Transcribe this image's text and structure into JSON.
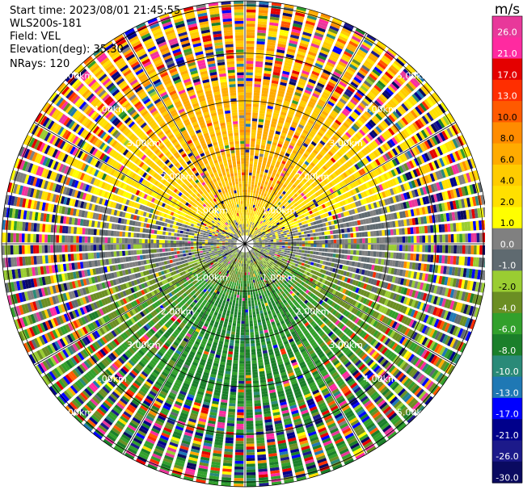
{
  "header": {
    "start_time": "Start time: 2023/08/01 21:45:55",
    "instrument": "WLS200s-181",
    "field": "Field: VEL",
    "elevation": "Elevation(deg): 35.30",
    "nrays": "NRays: 120"
  },
  "chart_data": {
    "type": "heatmap",
    "subtype": "polar PPI scan",
    "title": "",
    "field": "VEL",
    "units": "m/s",
    "elevation_deg": 35.3,
    "n_rays": 120,
    "max_range_km": 5.1,
    "range_rings_km": [
      1.0,
      2.0,
      3.0,
      4.0,
      5.0
    ],
    "range_labels": [
      "1.00km",
      "2.00km",
      "3.00km",
      "4.00km",
      "5.00km"
    ],
    "colorbar": {
      "label": "m/s",
      "ticks": [
        "26.0",
        "21.0",
        "17.0",
        "13.0",
        "10.0",
        "8.0",
        "6.0",
        "4.0",
        "2.0",
        "1.0",
        "0.0",
        "-1.0",
        "-2.0",
        "-4.0",
        "-6.0",
        "-8.0",
        "-10.0",
        "-13.0",
        "-17.0",
        "-21.0",
        "-26.0",
        "-30.0"
      ],
      "bounds": [
        30,
        26,
        21,
        17,
        13,
        10,
        8,
        6,
        4,
        2,
        1,
        0,
        -1,
        -2,
        -4,
        -6,
        -8,
        -10,
        -13,
        -17,
        -21,
        -26,
        -30
      ],
      "colors": [
        "#e8389a",
        "#ff2aa0",
        "#e40000",
        "#ff2e00",
        "#ff5a00",
        "#ff8c00",
        "#ffab00",
        "#ffcc00",
        "#ffe000",
        "#ffff00",
        "#808080",
        "#5f6a70",
        "#9acd32",
        "#6b8e23",
        "#32a02c",
        "#1b7f2a",
        "#2a8a78",
        "#1f78b4",
        "#0000ff",
        "#00008b",
        "#1c1a8a",
        "#0a0a60"
      ]
    },
    "pattern": {
      "receding_sector": "north, 0.5-3.0 km: velocities 2 to 8 m/s (yellow/orange)",
      "approaching_sector": "south, 0.5-3.0 km: velocities -2 to -8 m/s (green)",
      "far_range": "beyond ~3.5 km: noisy, values span the full -30 to 30 m/s range"
    }
  }
}
